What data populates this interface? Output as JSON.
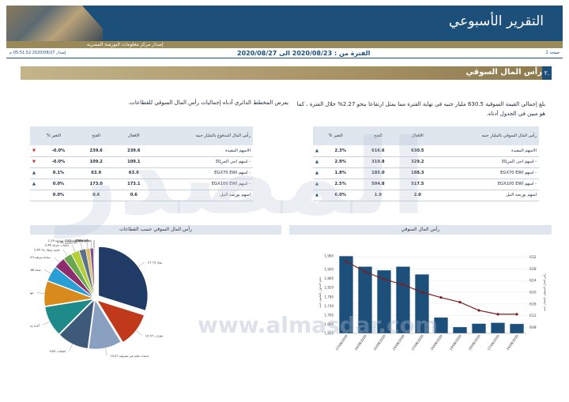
{
  "header": {
    "title": "التقرير الأسبوعي",
    "subtitle": "إصدار مركز معلومات البورصة المصرية",
    "page_label": "صفحة 2",
    "period": "الفترة من : 2020/08/23 الى 2020/08/27",
    "issue": "إصدار 2020/08/27 05:51:52 م"
  },
  "section": {
    "number": "٢.",
    "title": "رأس المال السوقي"
  },
  "intro_text": "بلغ إجمالي القيمة السوقية 630.5 مليار جنيه في نهاية الفترة مما يمثل ارتفاعا بنحو 2.27% خلال الفترة ، كما هو مبين في الجدول أدناه.",
  "chart_note": "يعرض المخطط الدائري أدناه إجماليات رأس المال السوقي للقطاعات.",
  "table_right": {
    "headers": [
      "رأس المال السوقي بالمليار جنيه",
      "الإقفال",
      "الفتح",
      "% التغير"
    ],
    "rows": [
      {
        "name": "الاسهم المقيدة",
        "close": "630.5",
        "open": "616.6",
        "change": "2.3%",
        "dir": "up"
      },
      {
        "name": "- اسهم اجي اكس30",
        "close": "329.2",
        "open": "319.8",
        "change": "2.9%",
        "dir": "up"
      },
      {
        "name": "- اسهم EGX70 EWI",
        "close": "188.3",
        "open": "185.0",
        "change": "1.8%",
        "dir": "up"
      },
      {
        "name": "- اسهم EGX100 EWI",
        "close": "517.5",
        "open": "504.8",
        "change": "2.5%",
        "dir": "up"
      },
      {
        "name": "اسهم بورصة النيل",
        "close": "2.0",
        "open": "1.9",
        "change": "6.0%",
        "dir": "up"
      }
    ]
  },
  "table_left": {
    "headers": [
      "رأس المال المدفوع بالمليار جنيه",
      "الإقفال",
      "الفتح",
      "% التغير"
    ],
    "rows": [
      {
        "name": "الاسهم المقيدة",
        "close": "239.6",
        "open": "239.6",
        "change": "-0.0%",
        "dir": "down"
      },
      {
        "name": "- اسهم اجي اكس30",
        "close": "109.1",
        "open": "109.2",
        "change": "-0.0%",
        "dir": "down"
      },
      {
        "name": "- اسهم EGX70 EWI",
        "close": "63.9",
        "open": "63.9",
        "change": "0.1%",
        "dir": "up"
      },
      {
        "name": "- اسهم EGX100 EWI",
        "close": "173.1",
        "open": "173.0",
        "change": "0.0%",
        "dir": "up"
      },
      {
        "name": "اسهم بورصة النيل",
        "close": "0.6",
        "open": "0.6",
        "change": "0.0%",
        "dir": "none"
      }
    ]
  },
  "pie_head": "رأس المال السوقي حسب القطاعات",
  "bar_head": "رأس المال السوقي",
  "watermark": "المصدر",
  "site_watermark": "www.almasdar.com",
  "colors": {
    "navy": "#1c4f7a",
    "gold": "#a89366",
    "bar": "#1c4f7a",
    "line": "#7a1f1f"
  },
  "chart_data": [
    {
      "type": "pie",
      "title": "رأس المال السوقي حسب القطاعات",
      "slices": [
        {
          "label": "بنوك 27.73",
          "value": 27.73,
          "color": "#1f3b66"
        },
        {
          "label": "عقارات 10.57",
          "value": 10.57,
          "color": "#c0391b"
        },
        {
          "label": "خدمات مالية غير مصرفية 10.07",
          "value": 10.07,
          "color": "#8aa0c0"
        },
        {
          "label": "اتصالات 9.62",
          "value": 9.62,
          "color": "#3d5a7a"
        },
        {
          "label": "أغذية ومشروبات 9.31",
          "value": 9.31,
          "color": "#1f8a8a"
        },
        {
          "label": "موارد أساسية وكيماويات 7.66",
          "value": 7.66,
          "color": "#d98a1c"
        },
        {
          "label": "صحة 4.66",
          "value": 4.66,
          "color": "#2a9fd6"
        },
        {
          "label": "سياحة وترفيه 3.43",
          "value": 3.43,
          "color": "#8e2d6b"
        },
        {
          "label": "تشييد ومواد بناء 2.65",
          "value": 2.65,
          "color": "#6aa84f"
        },
        {
          "label": "منتجات منزلية 2.48",
          "value": 2.48,
          "color": "#b4cf3a"
        },
        {
          "label": "غاز وبترول 1.98",
          "value": 1.98,
          "color": "#5d6f8a"
        },
        {
          "label": "خدمات ومنتجات صناعية 1.29",
          "value": 1.29,
          "color": "#e0c060"
        },
        {
          "label": "إعلام 0.99",
          "value": 0.99,
          "color": "#7b4fa0"
        },
        {
          "label": "تجارة وموزعون 0.23",
          "value": 0.23,
          "color": "#9c6b3a"
        },
        {
          "label": "مرافق 0.19",
          "value": 0.19,
          "color": "#3a7a3a"
        }
      ]
    },
    {
      "type": "bar",
      "title": "رأس المال السوقي",
      "categories": [
        "27/08/2020",
        "26/08/2020",
        "25/08/2020",
        "24/08/2020",
        "23/08/2020",
        "20/08/2020",
        "19/08/2020",
        "18/08/2020",
        "17/08/2020",
        "16/08/2020"
      ],
      "series": [
        {
          "type": "bar",
          "values": [
            1958,
            1912,
            1896,
            1912,
            1878,
            1689,
            1647,
            1662,
            1666,
            1661
          ]
        },
        {
          "type": "line",
          "values": [
            630.5,
            627.0,
            624.4,
            622.6,
            620.0,
            618.2,
            616.6,
            613.8,
            612.5,
            612.5
          ]
        }
      ],
      "y_left": {
        "ticks": [
          "1,960",
          "1,900",
          "1,860",
          "1,820",
          "1,780",
          "1,740",
          "1,700",
          "1,660",
          "1,620"
        ],
        "ylim": [
          1620,
          1980
        ]
      },
      "y_right": {
        "ticks": [
          "632",
          "628",
          "624",
          "620",
          "616",
          "612",
          "608"
        ],
        "ylim": [
          606,
          634
        ]
      },
      "ylabel_left": "حجم التداول بالمليون جنيه",
      "ylabel_right": "رأس المال السوقي بالمليار جنيه"
    }
  ]
}
